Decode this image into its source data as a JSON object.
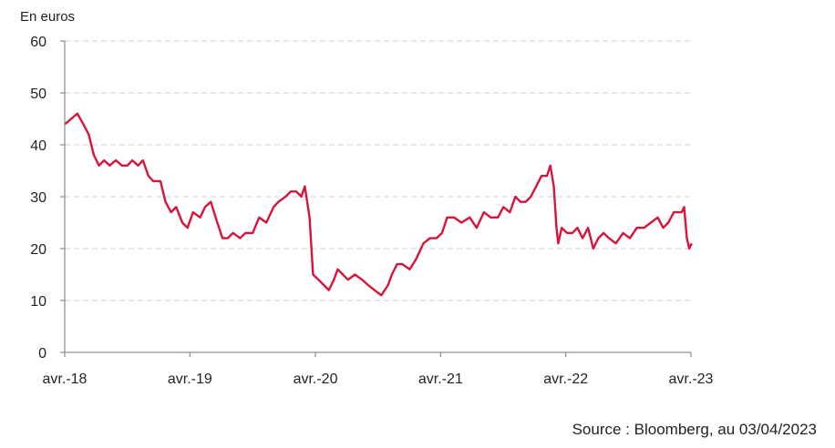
{
  "chart_data": {
    "type": "line",
    "title": "",
    "ylabel": "En euros",
    "xlabel": "",
    "source": "Source : Bloomberg, au 03/04/2023",
    "ylim": [
      0,
      60
    ],
    "yticks": [
      "0",
      "10",
      "20",
      "30",
      "40",
      "50",
      "60"
    ],
    "xlim": [
      "2018-04-01",
      "2023-04-01"
    ],
    "xticks": [
      {
        "date": "2018-04-01",
        "label": "avr.-18"
      },
      {
        "date": "2019-04-01",
        "label": "avr.-19"
      },
      {
        "date": "2020-04-01",
        "label": "avr.-20"
      },
      {
        "date": "2021-04-01",
        "label": "avr.-21"
      },
      {
        "date": "2022-04-01",
        "label": "avr.-22"
      },
      {
        "date": "2023-04-01",
        "label": "avr.-23"
      }
    ],
    "grid": "horizontal-dashed",
    "line_color": "#d9143a",
    "series": [
      {
        "x": [
          "2018-04-02",
          "2018-04-20",
          "2018-05-08",
          "2018-05-25",
          "2018-06-10",
          "2018-06-25",
          "2018-07-10",
          "2018-07-25",
          "2018-08-10",
          "2018-08-28",
          "2018-09-15",
          "2018-10-01",
          "2018-10-15",
          "2018-11-01",
          "2018-11-15",
          "2018-12-01",
          "2018-12-15",
          "2019-01-05",
          "2019-01-20",
          "2019-02-05",
          "2019-02-20",
          "2019-03-10",
          "2019-03-25",
          "2019-04-10",
          "2019-05-01",
          "2019-05-15",
          "2019-06-01",
          "2019-06-20",
          "2019-07-05",
          "2019-07-20",
          "2019-08-05",
          "2019-08-25",
          "2019-09-10",
          "2019-10-01",
          "2019-10-20",
          "2019-11-10",
          "2019-12-01",
          "2019-12-15",
          "2020-01-05",
          "2020-01-20",
          "2020-02-05",
          "2020-02-20",
          "2020-03-01",
          "2020-03-15",
          "2020-03-25",
          "2020-04-10",
          "2020-04-25",
          "2020-05-10",
          "2020-05-25",
          "2020-06-05",
          "2020-06-20",
          "2020-07-05",
          "2020-07-25",
          "2020-08-15",
          "2020-09-01",
          "2020-09-20",
          "2020-10-10",
          "2020-10-30",
          "2020-11-10",
          "2020-11-25",
          "2020-12-10",
          "2021-01-01",
          "2021-01-20",
          "2021-02-10",
          "2021-03-01",
          "2021-03-20",
          "2021-04-05",
          "2021-04-20",
          "2021-05-10",
          "2021-06-01",
          "2021-06-25",
          "2021-07-15",
          "2021-08-05",
          "2021-08-25",
          "2021-09-15",
          "2021-10-01",
          "2021-10-20",
          "2021-11-05",
          "2021-11-20",
          "2021-12-05",
          "2021-12-20",
          "2022-01-05",
          "2022-01-20",
          "2022-02-05",
          "2022-02-15",
          "2022-02-25",
          "2022-03-05",
          "2022-03-10",
          "2022-03-20",
          "2022-04-05",
          "2022-04-20",
          "2022-05-05",
          "2022-05-20",
          "2022-06-05",
          "2022-06-20",
          "2022-07-05",
          "2022-07-20",
          "2022-08-05",
          "2022-08-25",
          "2022-09-15",
          "2022-10-05",
          "2022-10-25",
          "2022-11-15",
          "2022-12-05",
          "2022-12-25",
          "2023-01-10",
          "2023-01-25",
          "2023-02-10",
          "2023-02-25",
          "2023-03-05",
          "2023-03-12",
          "2023-03-20",
          "2023-03-27",
          "2023-04-03"
        ],
        "values": [
          44,
          45,
          46,
          44,
          42,
          38,
          36,
          37,
          36,
          37,
          36,
          36,
          37,
          36,
          37,
          34,
          33,
          33,
          29,
          27,
          28,
          25,
          24,
          27,
          26,
          28,
          29,
          25,
          22,
          22,
          23,
          22,
          23,
          23,
          26,
          25,
          28,
          29,
          30,
          31,
          31,
          30,
          32,
          26,
          15,
          14,
          13,
          12,
          14,
          16,
          15,
          14,
          15,
          14,
          13,
          12,
          11,
          13,
          15,
          17,
          17,
          16,
          18,
          21,
          22,
          22,
          23,
          26,
          26,
          25,
          26,
          24,
          27,
          26,
          26,
          28,
          27,
          30,
          29,
          29,
          30,
          32,
          34,
          34,
          36,
          32,
          24,
          21,
          24,
          23,
          23,
          24,
          22,
          24,
          20,
          22,
          23,
          22,
          21,
          23,
          22,
          24,
          24,
          25,
          26,
          24,
          25,
          27,
          27,
          27,
          28,
          22,
          20,
          21
        ]
      }
    ]
  }
}
